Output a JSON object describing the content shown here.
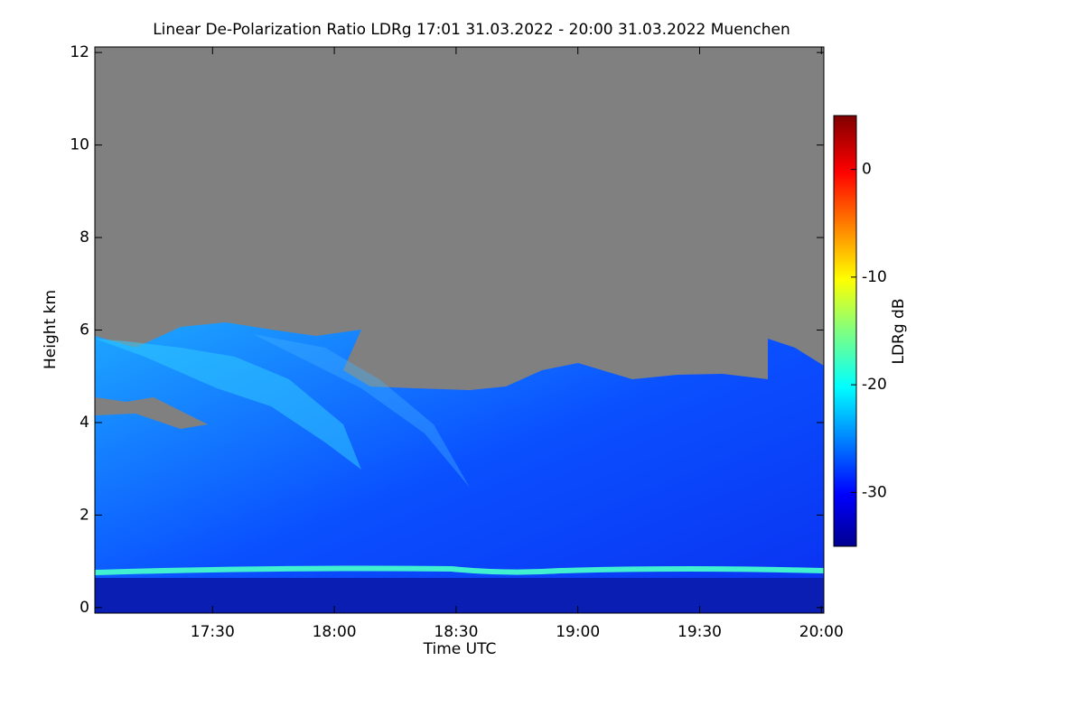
{
  "chart_data": {
    "type": "heatmap",
    "title": "Linear De-Polarization Ratio LDRg   17:01 31.03.2022 - 20:00 31.03.2022 Muenchen",
    "x_label": "Time UTC",
    "y_label": "Height km",
    "xlim": [
      17.0167,
      20.01
    ],
    "xticks": [
      {
        "value": 17.5,
        "label": "17:30"
      },
      {
        "value": 18,
        "label": "18:00"
      },
      {
        "value": 18.5,
        "label": "18:30"
      },
      {
        "value": 19,
        "label": "19:00"
      },
      {
        "value": 19.5,
        "label": "19:30"
      },
      {
        "value": 20,
        "label": "20:00"
      }
    ],
    "ylim": [
      -0.12,
      12.12
    ],
    "yticks": [
      0,
      2,
      4,
      6,
      8,
      10,
      12
    ],
    "colorbar": {
      "label": "LDRg dB",
      "lim": [
        -35,
        5
      ],
      "ticks": [
        0,
        -10,
        -20,
        -30
      ]
    }
  }
}
